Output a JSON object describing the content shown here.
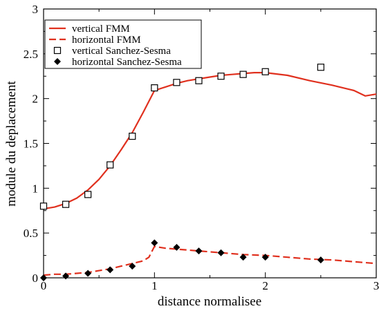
{
  "chart_data": {
    "type": "line",
    "xlabel": "distance normalisee",
    "ylabel": "module du deplacement",
    "xlim": [
      0,
      3
    ],
    "ylim": [
      0,
      3
    ],
    "x_ticks": [
      "0",
      "1",
      "2",
      "3"
    ],
    "y_ticks": [
      "0",
      "0.5",
      "1",
      "1.5",
      "2",
      "2.5",
      "3"
    ],
    "grid": false,
    "legend_position": "top-left",
    "series": [
      {
        "name": "vertical FMM",
        "style": "solid-line",
        "color": "#e0301e",
        "x": [
          0,
          0.1,
          0.2,
          0.3,
          0.4,
          0.5,
          0.6,
          0.7,
          0.8,
          0.9,
          1.0,
          1.1,
          1.2,
          1.3,
          1.4,
          1.5,
          1.6,
          1.7,
          1.8,
          1.9,
          2.0,
          2.2,
          2.4,
          2.6,
          2.8,
          2.9,
          3.0
        ],
        "y": [
          0.77,
          0.79,
          0.83,
          0.89,
          0.98,
          1.1,
          1.25,
          1.43,
          1.62,
          1.85,
          2.09,
          2.13,
          2.17,
          2.2,
          2.22,
          2.24,
          2.26,
          2.27,
          2.28,
          2.29,
          2.29,
          2.26,
          2.2,
          2.15,
          2.09,
          2.03,
          2.05
        ]
      },
      {
        "name": "horizontal FMM",
        "style": "dashed-line",
        "color": "#e0301e",
        "x": [
          0,
          0.1,
          0.2,
          0.3,
          0.4,
          0.5,
          0.6,
          0.7,
          0.8,
          0.9,
          0.95,
          1.0,
          1.1,
          1.2,
          1.4,
          1.6,
          1.8,
          2.0,
          2.2,
          2.4,
          2.6,
          2.8,
          3.0
        ],
        "y": [
          0.03,
          0.04,
          0.04,
          0.05,
          0.06,
          0.08,
          0.1,
          0.13,
          0.16,
          0.19,
          0.23,
          0.35,
          0.33,
          0.32,
          0.3,
          0.28,
          0.26,
          0.25,
          0.23,
          0.21,
          0.2,
          0.18,
          0.16
        ]
      },
      {
        "name": "vertical Sanchez-Sesma",
        "style": "open-square-markers",
        "color": "#000000",
        "x": [
          0,
          0.2,
          0.4,
          0.6,
          0.8,
          1.0,
          1.2,
          1.4,
          1.6,
          1.8,
          2.0,
          2.5
        ],
        "y": [
          0.8,
          0.82,
          0.93,
          1.26,
          1.58,
          2.12,
          2.18,
          2.2,
          2.25,
          2.27,
          2.3,
          2.35
        ]
      },
      {
        "name": "horizontal Sanchez-Sesma",
        "style": "filled-diamond-markers",
        "color": "#000000",
        "x": [
          0,
          0.2,
          0.4,
          0.6,
          0.8,
          1.0,
          1.2,
          1.4,
          1.6,
          1.8,
          2.0,
          2.5
        ],
        "y": [
          0.0,
          0.02,
          0.05,
          0.09,
          0.13,
          0.39,
          0.34,
          0.3,
          0.28,
          0.23,
          0.23,
          0.2
        ]
      }
    ]
  }
}
